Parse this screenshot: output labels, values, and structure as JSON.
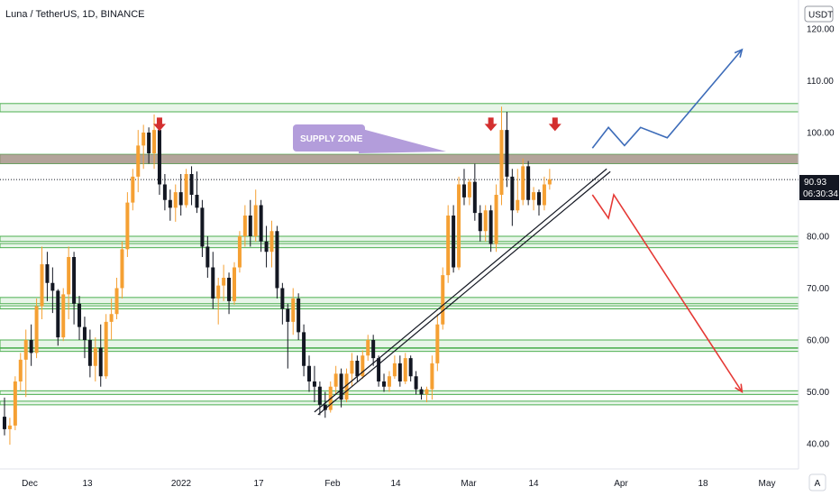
{
  "header": {
    "title": "Luna / TetherUS, 1D, BINANCE"
  },
  "price_axis": {
    "currency_button": "USDT",
    "ticks": [
      "120.00",
      "110.00",
      "100.00",
      "90.00",
      "80.00",
      "70.00",
      "60.00",
      "50.00",
      "40.00"
    ],
    "last_price": "90.93",
    "countdown": "06:30:34"
  },
  "time_axis": {
    "labels": [
      "Dec",
      "13",
      "2022",
      "17",
      "Feb",
      "14",
      "Mar",
      "14",
      "Apr",
      "18",
      "May"
    ],
    "auto_button": "A"
  },
  "annotations": {
    "supply_zone": "SUPPLY ZONE"
  },
  "colors": {
    "up": "#f5a033",
    "down": "#131722",
    "zone_line": "#4caf50",
    "zone_fill": "#e8f5e9",
    "supply_band": "#a1887f",
    "callout": "#b39ddb",
    "bull_path": "#3d6cb9",
    "bear_path": "#e53935",
    "marker_arrow": "#d32f2f"
  },
  "chart_data": {
    "type": "candlestick",
    "symbol": "Luna / TetherUS",
    "interval": "1D",
    "exchange": "BINANCE",
    "ylim": [
      36,
      124
    ],
    "candles": [
      [
        45.2,
        48.9,
        41.6,
        42.8
      ],
      [
        42.8,
        45.0,
        39.8,
        43.5
      ],
      [
        43.5,
        53.0,
        42.6,
        52.0
      ],
      [
        52.0,
        57.5,
        50.2,
        56.2
      ],
      [
        56.2,
        62.0,
        49.0,
        60.0
      ],
      [
        60.0,
        63.0,
        55.0,
        57.5
      ],
      [
        57.5,
        68.0,
        56.5,
        66.5
      ],
      [
        66.5,
        78.0,
        64.0,
        74.6
      ],
      [
        74.6,
        77.0,
        67.5,
        71.0
      ],
      [
        71.0,
        74.0,
        65.2,
        69.5
      ],
      [
        69.5,
        69.8,
        58.9,
        60.5
      ],
      [
        60.5,
        70.0,
        59.8,
        68.8
      ],
      [
        68.8,
        78.0,
        64.0,
        76.0
      ],
      [
        76.0,
        77.0,
        63.0,
        67.0
      ],
      [
        67.0,
        68.5,
        60.0,
        62.5
      ],
      [
        62.5,
        64.5,
        56.5,
        60.0
      ],
      [
        60.0,
        62.0,
        52.8,
        55.0
      ],
      [
        55.0,
        60.5,
        52.0,
        58.5
      ],
      [
        58.5,
        63.0,
        51.0,
        53.0
      ],
      [
        53.0,
        65.0,
        52.5,
        63.5
      ],
      [
        63.5,
        68.0,
        60.0,
        65.0
      ],
      [
        65.0,
        72.0,
        64.0,
        70.0
      ],
      [
        70.0,
        79.0,
        68.0,
        77.5
      ],
      [
        77.5,
        88.5,
        76.0,
        86.5
      ],
      [
        86.5,
        93.0,
        85.0,
        91.5
      ],
      [
        91.5,
        100.5,
        88.5,
        97.5
      ],
      [
        97.5,
        101.5,
        93.0,
        100.0
      ],
      [
        100.0,
        101.0,
        94.0,
        96.0
      ],
      [
        96.0,
        103.5,
        93.0,
        100.5
      ],
      [
        100.5,
        101.0,
        88.0,
        90.0
      ],
      [
        90.0,
        92.0,
        85.0,
        87.0
      ],
      [
        87.0,
        89.0,
        83.0,
        85.5
      ],
      [
        85.5,
        90.0,
        82.8,
        88.5
      ],
      [
        88.5,
        92.0,
        84.0,
        86.0
      ],
      [
        86.0,
        93.0,
        85.5,
        92.0
      ],
      [
        92.0,
        93.5,
        86.0,
        88.0
      ],
      [
        88.0,
        92.5,
        84.5,
        85.5
      ],
      [
        85.5,
        87.0,
        76.0,
        78.0
      ],
      [
        78.0,
        80.0,
        72.0,
        74.0
      ],
      [
        74.0,
        77.0,
        66.0,
        68.0
      ],
      [
        68.0,
        72.0,
        63.0,
        70.5
      ],
      [
        70.5,
        74.5,
        67.5,
        72.0
      ],
      [
        72.0,
        73.0,
        65.0,
        67.5
      ],
      [
        67.5,
        75.0,
        66.8,
        74.0
      ],
      [
        74.0,
        81.0,
        73.0,
        80.0
      ],
      [
        80.0,
        86.0,
        78.0,
        84.0
      ],
      [
        84.0,
        87.0,
        78.0,
        80.0
      ],
      [
        80.0,
        89.0,
        79.0,
        86.0
      ],
      [
        86.0,
        87.0,
        77.0,
        79.0
      ],
      [
        79.0,
        82.0,
        74.0,
        77.0
      ],
      [
        77.0,
        83.0,
        74.0,
        81.0
      ],
      [
        81.0,
        82.0,
        68.0,
        70.0
      ],
      [
        70.0,
        71.0,
        63.0,
        66.0
      ],
      [
        66.0,
        67.0,
        54.5,
        63.5
      ],
      [
        63.5,
        70.0,
        61.0,
        68.0
      ],
      [
        68.0,
        69.0,
        60.0,
        61.5
      ],
      [
        61.5,
        63.0,
        53.0,
        55.0
      ],
      [
        55.0,
        57.0,
        50.0,
        52.0
      ],
      [
        52.0,
        55.0,
        48.0,
        51.0
      ],
      [
        51.0,
        52.0,
        45.5,
        47.5
      ],
      [
        47.5,
        50.0,
        45.0,
        46.5
      ],
      [
        46.5,
        52.0,
        46.0,
        51.0
      ],
      [
        51.0,
        55.0,
        49.5,
        53.5
      ],
      [
        53.5,
        54.5,
        47.0,
        48.5
      ],
      [
        48.5,
        54.5,
        48.0,
        53.5
      ],
      [
        53.5,
        57.5,
        51.0,
        56.0
      ],
      [
        56.0,
        57.0,
        52.0,
        53.0
      ],
      [
        53.0,
        58.0,
        52.5,
        57.0
      ],
      [
        57.0,
        61.0,
        56.0,
        60.0
      ],
      [
        60.0,
        61.0,
        55.0,
        56.5
      ],
      [
        56.5,
        57.0,
        51.0,
        52.0
      ],
      [
        52.0,
        53.5,
        50.0,
        51.0
      ],
      [
        51.0,
        54.0,
        50.0,
        53.0
      ],
      [
        53.0,
        57.0,
        52.5,
        55.5
      ],
      [
        55.5,
        57.0,
        51.0,
        52.0
      ],
      [
        52.0,
        57.5,
        51.5,
        56.5
      ],
      [
        56.5,
        57.0,
        52.0,
        53.0
      ],
      [
        53.0,
        54.0,
        49.5,
        50.5
      ],
      [
        50.5,
        51.0,
        48.5,
        49.5
      ],
      [
        49.5,
        51.0,
        48.0,
        50.5
      ],
      [
        50.5,
        57.0,
        48.5,
        55.5
      ],
      [
        55.5,
        65.0,
        54.0,
        63.0
      ],
      [
        63.0,
        74.0,
        62.0,
        72.5
      ],
      [
        72.5,
        86.0,
        71.0,
        84.0
      ],
      [
        84.0,
        86.0,
        73.0,
        74.0
      ],
      [
        74.0,
        91.5,
        73.5,
        90.0
      ],
      [
        90.0,
        93.0,
        86.0,
        87.5
      ],
      [
        87.5,
        91.0,
        86.0,
        90.5
      ],
      [
        90.5,
        94.0,
        83.0,
        84.5
      ],
      [
        84.5,
        86.0,
        79.0,
        81.0
      ],
      [
        81.0,
        86.0,
        79.0,
        85.0
      ],
      [
        85.0,
        86.0,
        77.0,
        78.5
      ],
      [
        78.5,
        90.0,
        77.0,
        88.0
      ],
      [
        88.0,
        105.0,
        86.0,
        100.5
      ],
      [
        100.5,
        104.0,
        89.5,
        91.5
      ],
      [
        91.5,
        93.0,
        82.0,
        85.0
      ],
      [
        85.0,
        93.0,
        84.5,
        87.0
      ],
      [
        87.0,
        95.0,
        86.0,
        93.5
      ],
      [
        93.5,
        94.5,
        86.0,
        87.0
      ],
      [
        87.0,
        89.5,
        85.0,
        88.5
      ],
      [
        88.5,
        89.0,
        84.0,
        86.0
      ],
      [
        86.0,
        91.5,
        85.0,
        90.0
      ],
      [
        90.0,
        93.0,
        89.0,
        91.0
      ]
    ],
    "horizontal_zones": [
      [
        104.0,
        105.6
      ],
      [
        94.0,
        95.8
      ],
      [
        79.0,
        80.0
      ],
      [
        77.8,
        78.6
      ],
      [
        67.0,
        68.2
      ],
      [
        66.0,
        66.6
      ],
      [
        58.5,
        60.0
      ],
      [
        57.8,
        58.4
      ],
      [
        49.5,
        50.2
      ],
      [
        47.5,
        48.2
      ]
    ],
    "supply_zone_band": [
      94.0,
      95.8
    ],
    "last_price_line": 90.93,
    "trendline": {
      "from": [
        59,
        47.5
      ],
      "to": [
        112,
        93.0
      ]
    },
    "bullish_projection": [
      [
        110,
        97.0
      ],
      [
        113,
        101.0
      ],
      [
        116,
        97.5
      ],
      [
        119,
        101.0
      ],
      [
        124,
        99.0
      ],
      [
        138,
        116.0
      ]
    ],
    "bearish_projection": [
      [
        110,
        88.0
      ],
      [
        113,
        83.5
      ],
      [
        114,
        88.0
      ],
      [
        138,
        50.0
      ]
    ],
    "down_arrows_at": [
      [
        29,
        101.5
      ],
      [
        91,
        101.5
      ],
      [
        103,
        101.5
      ]
    ]
  }
}
